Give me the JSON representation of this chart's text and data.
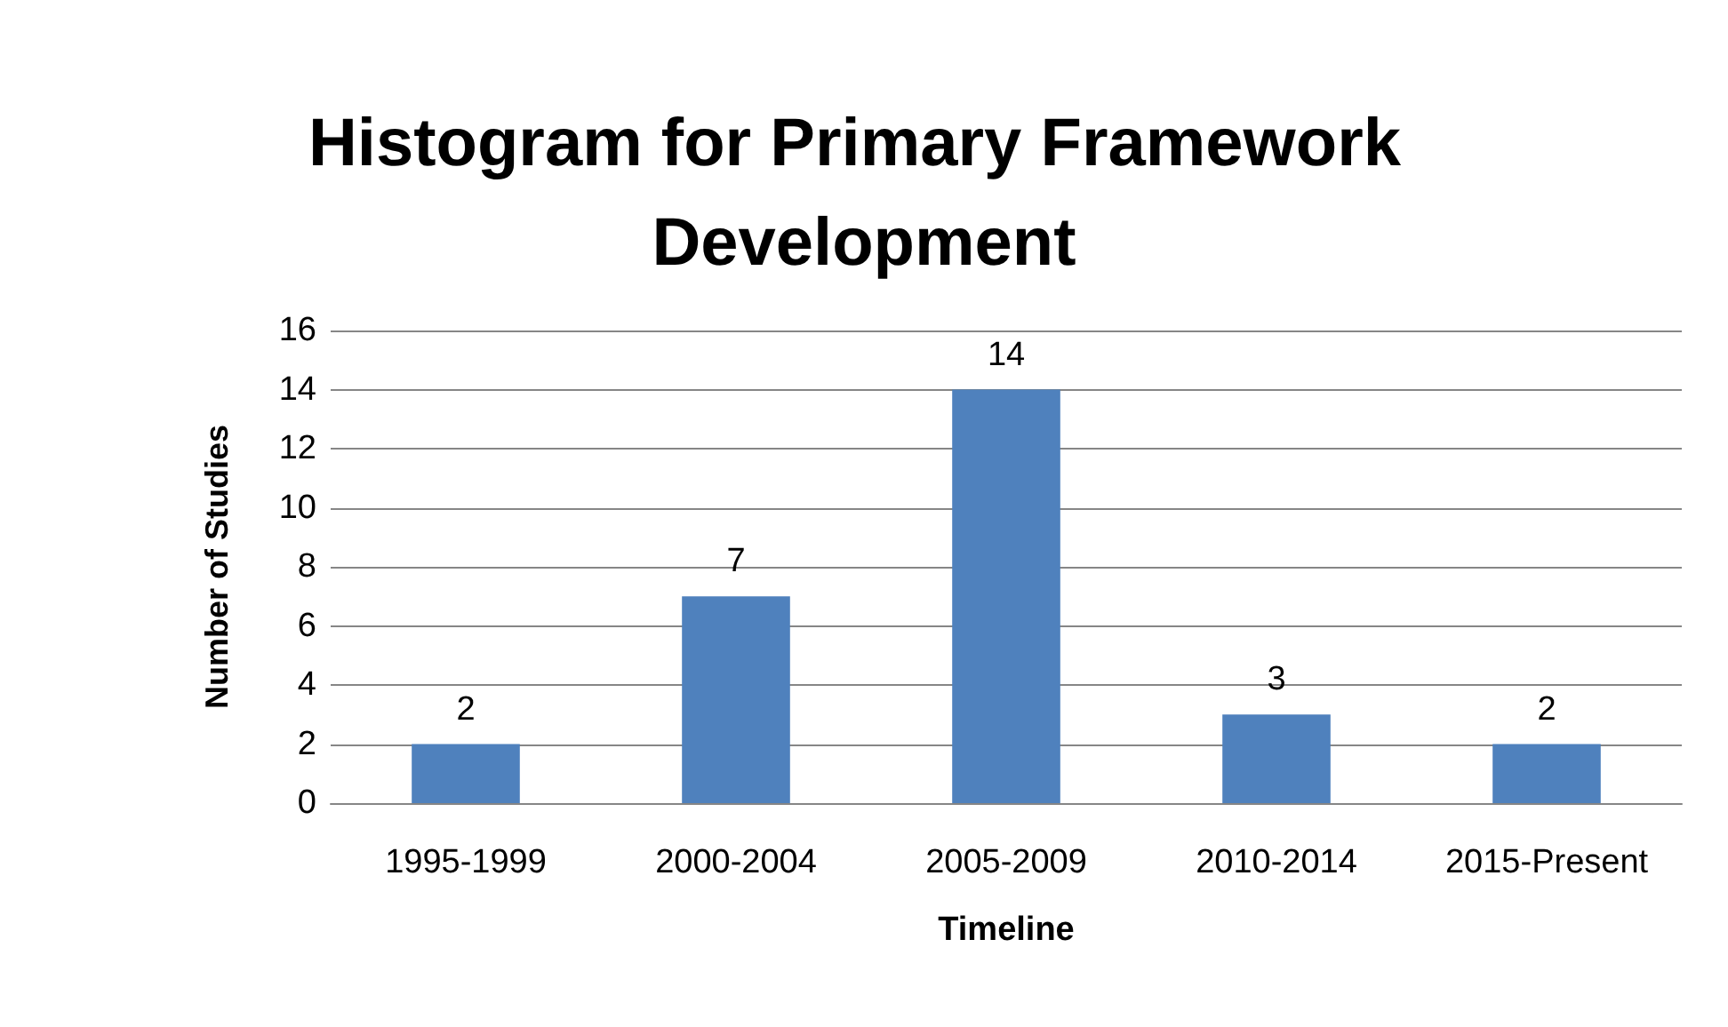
{
  "chart_data": {
    "type": "bar",
    "title": "Histogram for Primary Framework Development",
    "xlabel": "Timeline",
    "ylabel": "Number of Studies",
    "categories": [
      "1995-1999",
      "2000-2004",
      "2005-2009",
      "2010-2014",
      "2015-Present"
    ],
    "values": [
      2,
      7,
      14,
      3,
      2
    ],
    "color": "#4f81bd",
    "ylim": [
      0,
      16
    ],
    "yticks": [
      0,
      2,
      4,
      6,
      8,
      10,
      12,
      14,
      16
    ],
    "grid": "y",
    "data_labels": true
  }
}
